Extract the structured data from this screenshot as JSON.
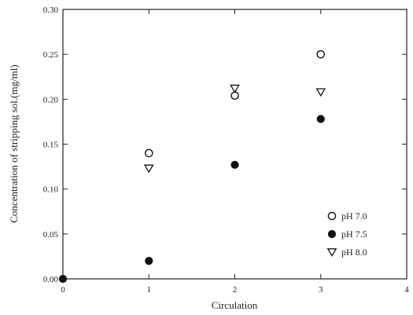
{
  "chart_data": {
    "type": "scatter",
    "xlabel": "Circulation",
    "ylabel": "Concentration of stripping sol.(mg/ml)",
    "xlim": [
      0,
      4
    ],
    "ylim": [
      0,
      0.3
    ],
    "x_ticks": [
      "0",
      "1",
      "2",
      "3",
      "4"
    ],
    "y_ticks": [
      "0.00",
      "0.05",
      "0.10",
      "0.15",
      "0.20",
      "0.25",
      "0.30"
    ],
    "grid": false,
    "legend_position": "bottom-right",
    "series": [
      {
        "name": "pH 7.0",
        "marker": "open-circle",
        "points": [
          [
            1,
            0.14
          ],
          [
            2,
            0.204
          ],
          [
            3,
            0.25
          ]
        ]
      },
      {
        "name": "pH 7.5",
        "marker": "filled-circle",
        "points": [
          [
            0,
            0.0
          ],
          [
            1,
            0.02
          ],
          [
            2,
            0.127
          ],
          [
            3,
            0.178
          ]
        ]
      },
      {
        "name": "pH 8.0",
        "marker": "open-triangle-down",
        "points": [
          [
            1,
            0.123
          ],
          [
            2,
            0.212
          ],
          [
            3,
            0.208
          ]
        ]
      }
    ],
    "legend": [
      {
        "marker": "open-circle",
        "label": "pH 7.0"
      },
      {
        "marker": "filled-circle",
        "label": "pH 7.5"
      },
      {
        "marker": "open-triangle-down",
        "label": "pH 8.0"
      }
    ]
  }
}
